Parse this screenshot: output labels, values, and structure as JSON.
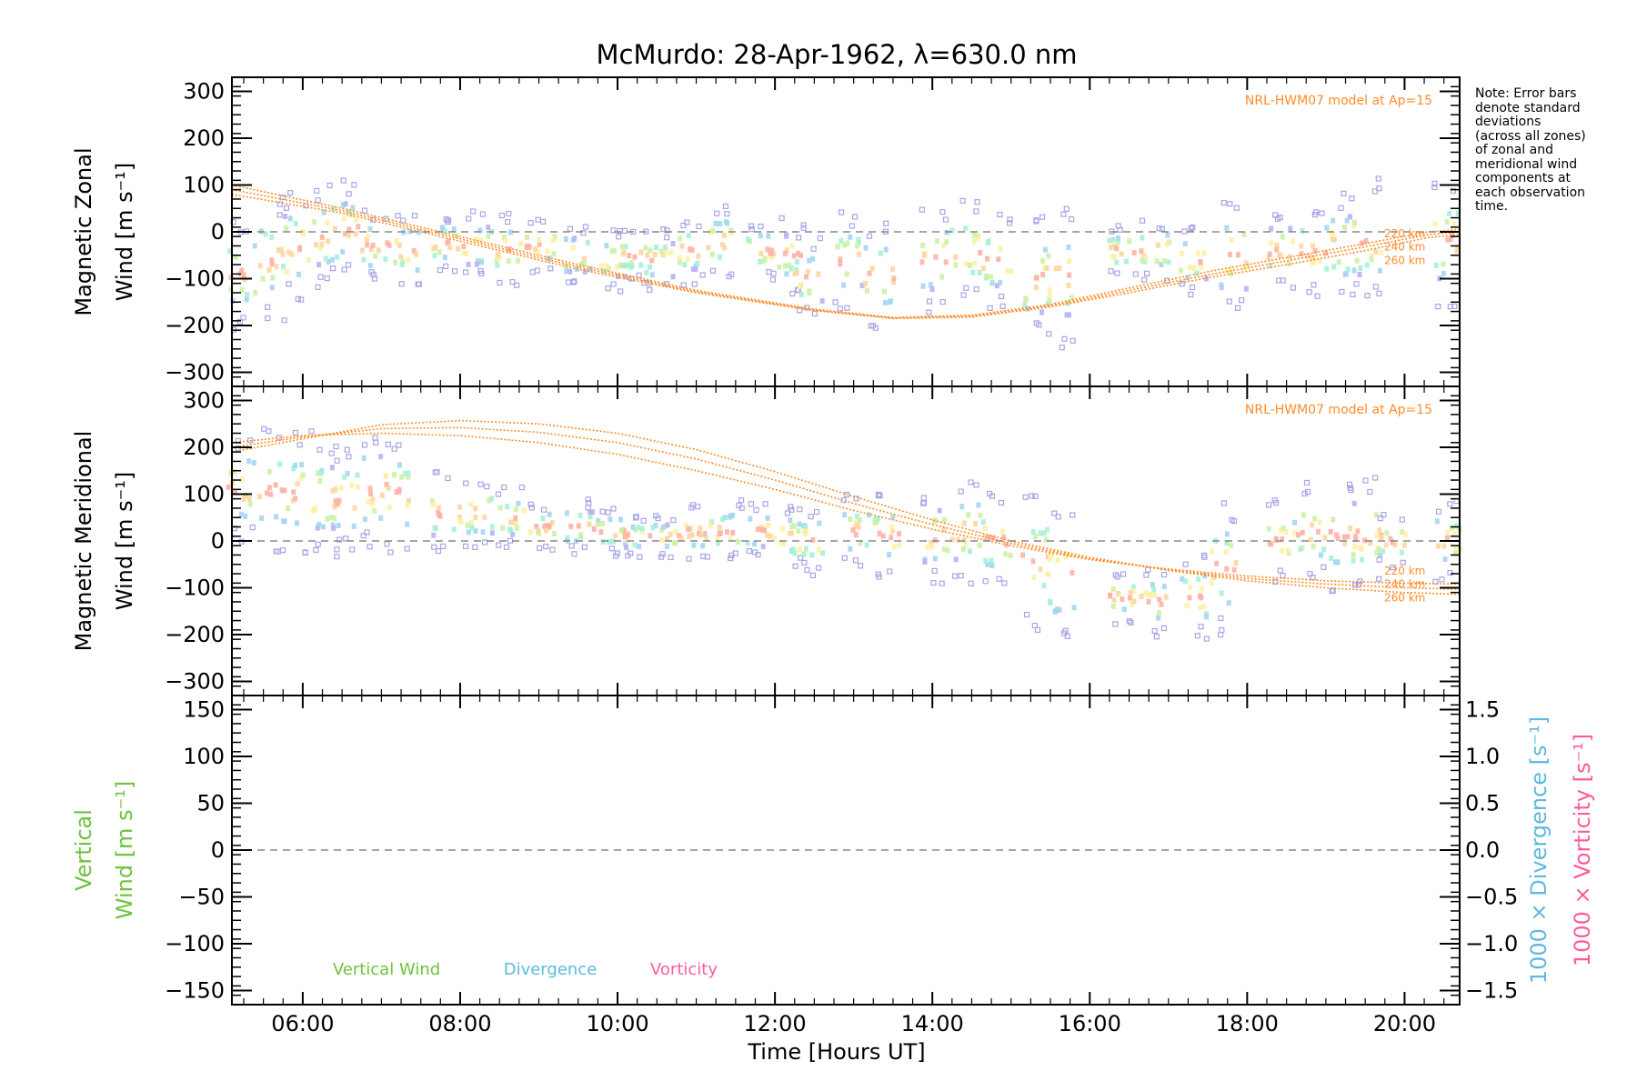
{
  "title": "McMurdo: 28-Apr-1962, λ=630.0 nm",
  "note": [
    "Note: Error bars",
    "denote standard",
    "deviations",
    "(across all zones)",
    "of zonal and",
    "meridional wind",
    "components at",
    "each observation",
    "time."
  ],
  "colors": {
    "model": "#ff8c2a",
    "error_bar": "#a9a6e6",
    "zero_line": "#888888",
    "vertical": "#6fc23a",
    "divergence": "#5eb8e0",
    "vorticity": "#ff5b9c",
    "rainbow": [
      "#ffb3a7",
      "#ffd6a0",
      "#fdf1a6",
      "#cdf2a6",
      "#a6f2d6",
      "#a6d6f2",
      "#b9b3f2"
    ]
  },
  "chart_data": [
    {
      "type": "scatter",
      "name": "zonal",
      "ylabel_lines": [
        "Magnetic Zonal",
        "Wind [m s⁻¹]"
      ],
      "ylim": [
        -330,
        330
      ],
      "yticks": [
        300,
        200,
        100,
        0,
        -100,
        -200,
        -300
      ],
      "xlim": [
        5.1,
        20.7
      ],
      "model_label": "NRL-HWM07 model at Ap=15",
      "altitudes": [
        "220 km",
        "240 km",
        "260 km"
      ],
      "model_curves": [
        {
          "name": "220 km",
          "x": [
            5.1,
            6.5,
            8.0,
            9.5,
            11.0,
            12.5,
            13.5,
            14.5,
            15.5,
            16.5,
            17.5,
            18.5,
            19.5,
            20.3,
            20.7
          ],
          "y": [
            100,
            50,
            -10,
            -70,
            -125,
            -165,
            -183,
            -178,
            -155,
            -120,
            -85,
            -55,
            -25,
            0,
            5
          ]
        },
        {
          "name": "240 km",
          "x": [
            5.1,
            6.5,
            8.0,
            9.5,
            11.0,
            12.5,
            13.5,
            14.5,
            15.5,
            16.5,
            17.5,
            18.5,
            19.5,
            20.3,
            20.7
          ],
          "y": [
            90,
            45,
            -15,
            -75,
            -128,
            -167,
            -184,
            -180,
            -158,
            -125,
            -92,
            -62,
            -32,
            -6,
            0
          ]
        },
        {
          "name": "260 km",
          "x": [
            5.1,
            6.5,
            8.0,
            9.5,
            11.0,
            12.5,
            13.5,
            14.5,
            15.5,
            16.5,
            17.5,
            18.5,
            19.5,
            20.3,
            20.7
          ],
          "y": [
            80,
            40,
            -20,
            -80,
            -130,
            -168,
            -185,
            -182,
            -160,
            -130,
            -98,
            -70,
            -40,
            -12,
            -6
          ]
        }
      ],
      "observations": [
        {
          "x": 5.2,
          "y": -90,
          "sd": 80
        },
        {
          "x": 5.6,
          "y": -60,
          "sd": 90
        },
        {
          "x": 5.9,
          "y": -30,
          "sd": 80
        },
        {
          "x": 6.3,
          "y": -10,
          "sd": 75
        },
        {
          "x": 6.5,
          "y": 5,
          "sd": 70
        },
        {
          "x": 6.9,
          "y": -30,
          "sd": 55
        },
        {
          "x": 7.3,
          "y": -40,
          "sd": 55
        },
        {
          "x": 7.8,
          "y": -25,
          "sd": 45
        },
        {
          "x": 8.2,
          "y": -30,
          "sd": 50
        },
        {
          "x": 8.6,
          "y": -40,
          "sd": 55
        },
        {
          "x": 9.0,
          "y": -30,
          "sd": 40
        },
        {
          "x": 9.5,
          "y": -50,
          "sd": 45
        },
        {
          "x": 9.9,
          "y": -60,
          "sd": 45
        },
        {
          "x": 10.2,
          "y": -50,
          "sd": 40
        },
        {
          "x": 10.5,
          "y": -60,
          "sd": 45
        },
        {
          "x": 10.9,
          "y": -40,
          "sd": 50
        },
        {
          "x": 11.3,
          "y": -20,
          "sd": 55
        },
        {
          "x": 11.8,
          "y": -40,
          "sd": 45
        },
        {
          "x": 12.2,
          "y": -50,
          "sd": 55
        },
        {
          "x": 12.4,
          "y": -100,
          "sd": 60
        },
        {
          "x": 12.9,
          "y": -60,
          "sd": 70
        },
        {
          "x": 13.3,
          "y": -90,
          "sd": 80
        },
        {
          "x": 14.0,
          "y": -60,
          "sd": 80
        },
        {
          "x": 14.4,
          "y": -40,
          "sd": 75
        },
        {
          "x": 14.8,
          "y": -60,
          "sd": 70
        },
        {
          "x": 15.3,
          "y": -100,
          "sd": 90
        },
        {
          "x": 15.6,
          "y": -100,
          "sd": 100
        },
        {
          "x": 16.4,
          "y": -40,
          "sd": 40
        },
        {
          "x": 16.8,
          "y": -40,
          "sd": 45
        },
        {
          "x": 17.3,
          "y": -60,
          "sd": 50
        },
        {
          "x": 17.8,
          "y": -50,
          "sd": 90
        },
        {
          "x": 18.4,
          "y": -40,
          "sd": 60
        },
        {
          "x": 18.8,
          "y": -40,
          "sd": 70
        },
        {
          "x": 19.2,
          "y": -30,
          "sd": 80
        },
        {
          "x": 19.5,
          "y": -20,
          "sd": 90
        },
        {
          "x": 20.5,
          "y": -20,
          "sd": 100
        }
      ]
    },
    {
      "type": "scatter",
      "name": "meridional",
      "ylabel_lines": [
        "Magnetic Meridional",
        "Wind [m s⁻¹]"
      ],
      "ylim": [
        -330,
        330
      ],
      "yticks": [
        300,
        200,
        100,
        0,
        -100,
        -200,
        -300
      ],
      "xlim": [
        5.1,
        20.7
      ],
      "model_label": "NRL-HWM07 model at Ap=15",
      "altitudes": [
        "220 km",
        "240 km",
        "260 km"
      ],
      "model_curves": [
        {
          "name": "220 km",
          "x": [
            5.1,
            6.0,
            7.0,
            8.0,
            9.0,
            10.0,
            11.0,
            12.0,
            13.0,
            14.0,
            15.0,
            16.0,
            17.0,
            18.0,
            19.0,
            20.0,
            20.7
          ],
          "y": [
            210,
            225,
            230,
            225,
            210,
            185,
            150,
            110,
            65,
            25,
            -10,
            -40,
            -60,
            -75,
            -85,
            -90,
            -92
          ]
        },
        {
          "name": "240 km",
          "x": [
            5.1,
            6.0,
            7.0,
            8.0,
            9.0,
            10.0,
            11.0,
            12.0,
            13.0,
            14.0,
            15.0,
            16.0,
            17.0,
            18.0,
            19.0,
            20.0,
            20.7
          ],
          "y": [
            200,
            222,
            240,
            242,
            232,
            210,
            175,
            130,
            80,
            35,
            -5,
            -38,
            -62,
            -80,
            -92,
            -100,
            -103
          ]
        },
        {
          "name": "260 km",
          "x": [
            5.1,
            6.0,
            7.0,
            8.0,
            9.0,
            10.0,
            11.0,
            12.0,
            13.0,
            14.0,
            15.0,
            16.0,
            17.0,
            18.0,
            19.0,
            20.0,
            20.7
          ],
          "y": [
            190,
            218,
            248,
            257,
            250,
            230,
            195,
            148,
            95,
            45,
            0,
            -35,
            -63,
            -85,
            -100,
            -110,
            -114
          ]
        }
      ],
      "observations": [
        {
          "x": 5.2,
          "y": 110,
          "sd": 80
        },
        {
          "x": 5.6,
          "y": 110,
          "sd": 90
        },
        {
          "x": 6.0,
          "y": 100,
          "sd": 90
        },
        {
          "x": 6.3,
          "y": 90,
          "sd": 85
        },
        {
          "x": 6.5,
          "y": 90,
          "sd": 80
        },
        {
          "x": 6.9,
          "y": 110,
          "sd": 90
        },
        {
          "x": 7.2,
          "y": 100,
          "sd": 85
        },
        {
          "x": 7.8,
          "y": 60,
          "sd": 60
        },
        {
          "x": 8.2,
          "y": 60,
          "sd": 55
        },
        {
          "x": 8.6,
          "y": 50,
          "sd": 45
        },
        {
          "x": 9.0,
          "y": 30,
          "sd": 35
        },
        {
          "x": 9.5,
          "y": 30,
          "sd": 40
        },
        {
          "x": 9.9,
          "y": 20,
          "sd": 35
        },
        {
          "x": 10.2,
          "y": 10,
          "sd": 30
        },
        {
          "x": 10.6,
          "y": 10,
          "sd": 30
        },
        {
          "x": 11.0,
          "y": 20,
          "sd": 40
        },
        {
          "x": 11.4,
          "y": 20,
          "sd": 45
        },
        {
          "x": 11.8,
          "y": 20,
          "sd": 40
        },
        {
          "x": 12.2,
          "y": 10,
          "sd": 45
        },
        {
          "x": 12.4,
          "y": 0,
          "sd": 50
        },
        {
          "x": 13.0,
          "y": 20,
          "sd": 55
        },
        {
          "x": 13.4,
          "y": 10,
          "sd": 60
        },
        {
          "x": 14.0,
          "y": 10,
          "sd": 70
        },
        {
          "x": 14.4,
          "y": 20,
          "sd": 75
        },
        {
          "x": 14.8,
          "y": 0,
          "sd": 70
        },
        {
          "x": 15.3,
          "y": -40,
          "sd": 100
        },
        {
          "x": 15.6,
          "y": -70,
          "sd": 110
        },
        {
          "x": 16.4,
          "y": -120,
          "sd": 40
        },
        {
          "x": 16.8,
          "y": -130,
          "sd": 50
        },
        {
          "x": 17.3,
          "y": -120,
          "sd": 60
        },
        {
          "x": 17.7,
          "y": -60,
          "sd": 100
        },
        {
          "x": 18.4,
          "y": 0,
          "sd": 60
        },
        {
          "x": 18.8,
          "y": 20,
          "sd": 70
        },
        {
          "x": 19.2,
          "y": 10,
          "sd": 80
        },
        {
          "x": 19.5,
          "y": 10,
          "sd": 90
        },
        {
          "x": 19.8,
          "y": 0,
          "sd": 40
        },
        {
          "x": 20.5,
          "y": 0,
          "sd": 60
        }
      ]
    },
    {
      "type": "line",
      "name": "vertical",
      "ylabel_lines": [
        "Vertical",
        "Wind [m s⁻¹]"
      ],
      "ylim": [
        -165,
        165
      ],
      "yticks": [
        150,
        100,
        50,
        0,
        -50,
        -100,
        -150
      ],
      "y2label_lines": [
        "1000 × Divergence [s⁻¹]",
        "1000 × Vorticity [s⁻¹]"
      ],
      "y2lim": [
        -1.65,
        1.65
      ],
      "y2ticks": [
        "1.5",
        "1.0",
        "0.5",
        "0.0",
        "−0.5",
        "−1.0",
        "−1.5"
      ],
      "xlim": [
        5.1,
        20.7
      ],
      "xticks": [
        "06:00",
        "08:00",
        "10:00",
        "12:00",
        "14:00",
        "16:00",
        "18:00",
        "20:00"
      ],
      "xlabel": "Time [Hours UT]",
      "legend": [
        "Vertical Wind",
        "Divergence",
        "Vorticity"
      ],
      "series": []
    }
  ]
}
